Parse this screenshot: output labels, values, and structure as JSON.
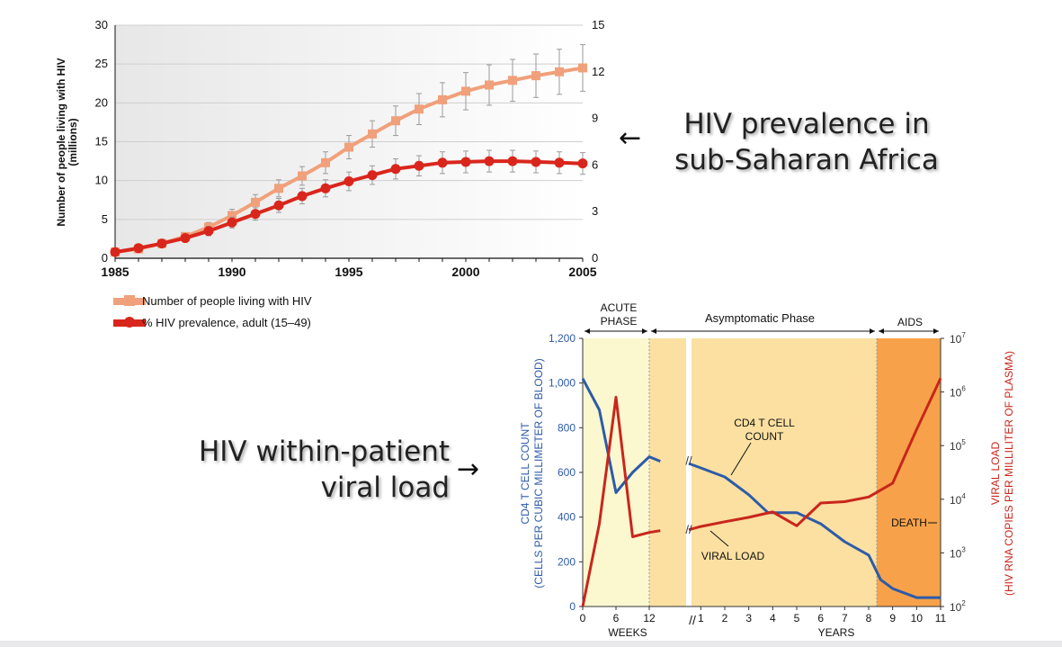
{
  "slide_labels": {
    "prevalence": [
      "HIV prevalence in",
      "sub-Saharan Africa"
    ],
    "viral": [
      "HIV within-patient",
      "viral load"
    ],
    "arrow_left": "←",
    "arrow_right": "→"
  },
  "chart_data": [
    {
      "type": "line",
      "title": "",
      "x": [
        1985,
        1986,
        1987,
        1988,
        1989,
        1990,
        1991,
        1992,
        1993,
        1994,
        1995,
        1996,
        1997,
        1998,
        1999,
        2000,
        2001,
        2002,
        2003,
        2004,
        2005
      ],
      "xticks": [
        "1985",
        "1990",
        "1995",
        "2000",
        "2005"
      ],
      "xlim": [
        1985,
        2005
      ],
      "ylabel": "Number of people living with HIV (millions)",
      "ylim": [
        0,
        30
      ],
      "yticks": [
        "0",
        "5",
        "10",
        "15",
        "20",
        "25",
        "30"
      ],
      "y2lim": [
        0,
        15
      ],
      "y2ticks": [
        "0",
        "3",
        "6",
        "9",
        "12",
        "15"
      ],
      "grid": true,
      "series": [
        {
          "name": "Number of people living with HIV",
          "axis": "left",
          "color": "#f0a07a",
          "values": [
            0.8,
            1.2,
            1.9,
            2.8,
            4.0,
            5.5,
            7.2,
            9.0,
            10.6,
            12.3,
            14.3,
            16.0,
            17.7,
            19.2,
            20.4,
            21.5,
            22.3,
            22.9,
            23.5,
            24.0,
            24.5
          ],
          "error": [
            0.2,
            0.3,
            0.4,
            0.5,
            0.6,
            0.8,
            1.0,
            1.1,
            1.2,
            1.4,
            1.5,
            1.7,
            1.9,
            2.0,
            2.2,
            2.4,
            2.6,
            2.7,
            2.8,
            2.9,
            3.0
          ]
        },
        {
          "name": "% HIV prevalence, adult (15–49)",
          "axis": "right",
          "color": "#d9261c",
          "values": [
            0.4,
            0.65,
            0.95,
            1.3,
            1.75,
            2.3,
            2.85,
            3.4,
            4.0,
            4.5,
            4.95,
            5.35,
            5.75,
            5.95,
            6.15,
            6.2,
            6.25,
            6.25,
            6.2,
            6.15,
            6.1
          ],
          "error": [
            0.1,
            0.15,
            0.2,
            0.25,
            0.3,
            0.35,
            0.4,
            0.45,
            0.5,
            0.55,
            0.6,
            0.6,
            0.65,
            0.65,
            0.7,
            0.7,
            0.7,
            0.7,
            0.7,
            0.7,
            0.7
          ]
        }
      ],
      "legend": "bottom-left"
    },
    {
      "type": "line",
      "title": "",
      "phases": [
        {
          "label": "ACUTE PHASE",
          "lines": [
            "ACUTE",
            "PHASE"
          ],
          "from": 0,
          "to": 1
        },
        {
          "label": "Asymptomatic Phase",
          "lines": [
            "Asymptomatic Phase"
          ],
          "from": 1,
          "to": 2
        },
        {
          "label": "AIDS",
          "lines": [
            "AIDS"
          ],
          "from": 2,
          "to": 3
        }
      ],
      "x_weeks": [
        0,
        3,
        6,
        9,
        12
      ],
      "x_weeks_ticks": [
        "0",
        "6",
        "12"
      ],
      "x_years_ticks": [
        "1",
        "2",
        "3",
        "4",
        "5",
        "6",
        "7",
        "8",
        "9",
        "10",
        "11"
      ],
      "xlabel_weeks": "WEEKS",
      "xlabel_years": "YEARS",
      "ylabel": "CD4 T CELL COUNT (CELLS PER CUBIC MILLIMETER OF BLOOD)",
      "ylabel_lines": [
        "CD4 T CELL COUNT",
        "(CELLS PER CUBIC MILLIMETER OF BLOOD)"
      ],
      "ylim": [
        0,
        1200
      ],
      "yticks": [
        "0",
        "200",
        "400",
        "600",
        "800",
        "1,000",
        "1,200"
      ],
      "y2label": "VIRAL LOAD (HIV RNA COPIES PER MILLILITER OF PLASMA)",
      "y2label_lines": [
        "VIRAL LOAD",
        "(HIV RNA COPIES PER MILLILITER OF PLASMA)"
      ],
      "y2_scale": "log",
      "y2lim": [
        100,
        10000000
      ],
      "y2ticks": [
        "10^2",
        "10^3",
        "10^4",
        "10^5",
        "10^6",
        "10^7"
      ],
      "series": [
        {
          "name": "CD4 T CELL COUNT",
          "axis": "left",
          "color": "#2e5ba8",
          "weeks": [
            [
              0,
              1020
            ],
            [
              3,
              880
            ],
            [
              6,
              510
            ],
            [
              9,
              600
            ],
            [
              12,
              670
            ],
            [
              14,
              650
            ]
          ],
          "years": [
            [
              0.5,
              640
            ],
            [
              1,
              620
            ],
            [
              2,
              580
            ],
            [
              3,
              500
            ],
            [
              3.8,
              420
            ],
            [
              4.5,
              420
            ],
            [
              5,
              420
            ],
            [
              6,
              370
            ],
            [
              7,
              290
            ],
            [
              8,
              230
            ],
            [
              8.5,
              120
            ],
            [
              9,
              80
            ],
            [
              10,
              40
            ],
            [
              11,
              40
            ]
          ]
        },
        {
          "name": "VIRAL LOAD",
          "axis": "right",
          "color": "#c8261c",
          "weeks": [
            [
              0,
              100
            ],
            [
              3,
              3500
            ],
            [
              6,
              800000
            ],
            [
              9,
              2000
            ],
            [
              12,
              2400
            ],
            [
              14,
              2600
            ]
          ],
          "years": [
            [
              0.5,
              2700
            ],
            [
              1,
              3100
            ],
            [
              2,
              3800
            ],
            [
              3,
              4600
            ],
            [
              4,
              5800
            ],
            [
              5,
              3200
            ],
            [
              6,
              8500
            ],
            [
              7,
              9000
            ],
            [
              8,
              11000
            ],
            [
              9,
              20000
            ],
            [
              10,
              200000
            ],
            [
              11,
              1800000
            ]
          ]
        }
      ],
      "annotations": [
        {
          "text": "CD4 T CELL COUNT",
          "lines": [
            "CD4 T CELL",
            "COUNT"
          ]
        },
        {
          "text": "VIRAL LOAD",
          "lines": [
            "VIRAL LOAD"
          ]
        },
        {
          "text": "DEATH",
          "lines": [
            "DEATH"
          ]
        }
      ],
      "colors": {
        "acute": "#fbf7cf",
        "asymptomatic": "#fbe0a1",
        "aids": "#f7a24a"
      }
    }
  ]
}
